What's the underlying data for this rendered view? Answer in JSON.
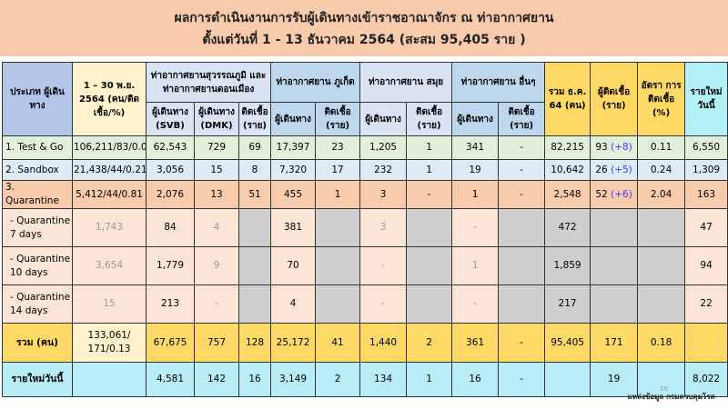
{
  "title": {
    "line1": "ผลการดำเนินงานการรับผู้เดินทางเข้าราชอาณาจักร ณ ท่าอากาศยาน",
    "line2": "ตั้งแต่วันที่  1 - 13  ธันวาคม 2564  (สะสม 95,405 ราย )"
  },
  "header": {
    "type": "ประเภท ผู้เดินทาง",
    "nov": "1 – 30 พ.ย. 2564 (คน/ติดเชื้อ/%)",
    "bkk": "ท่าอากาศยานสุวรรณภูมิ และท่าอากาศยานดอนเมือง",
    "phuket": "ท่าอากาศยาน ภูเก็ต",
    "samui": "ท่าอากาศยาน สมุย",
    "other": "ท่าอากาศยาน อื่นๆ",
    "total_dec": "รวม ธ.ค. 64 (คน)",
    "infected": "ผู้ติดเชื้อ (ราย)",
    "rate": "อัตรา การติดเชื้อ (%)",
    "new_today": "รายใหม่ วันนี้",
    "svb": "ผู้เดินทาง (SVB)",
    "dmk": "ผู้เดินทาง (DMK)",
    "inf": "ติดเชื้อ (ราย)",
    "trav": "ผู้เดินทาง"
  },
  "rows": [
    {
      "label": "1. Test & Go",
      "nov": "106,211/83/0.08",
      "svb": "62,543",
      "dmk": "729",
      "bkk_inf": "69",
      "hkt": "17,397",
      "hkt_inf": "23",
      "usm": "1,205",
      "usm_inf": "1",
      "oth": "341",
      "oth_inf": "-",
      "total": "82,215",
      "infected": "93",
      "infected_delta": "(+8)",
      "rate": "0.11",
      "new": "6,550"
    },
    {
      "label": "2. Sandbox",
      "nov": "21,438/44/0.21",
      "svb": "3,056",
      "dmk": "15",
      "bkk_inf": "8",
      "hkt": "7,320",
      "hkt_inf": "17",
      "usm": "232",
      "usm_inf": "1",
      "oth": "19",
      "oth_inf": "-",
      "total": "10,642",
      "infected": "26",
      "infected_delta": "(+5)",
      "rate": "0.24",
      "new": "1,309"
    },
    {
      "label": "3. Quarantine",
      "nov": "5,412/44/0.81",
      "svb": "2,076",
      "dmk": "13",
      "bkk_inf": "51",
      "hkt": "455",
      "hkt_inf": "1",
      "usm": "3",
      "usm_inf": "-",
      "oth": "1",
      "oth_inf": "-",
      "total": "2,548",
      "infected": "52",
      "infected_delta": "(+6)",
      "rate": "2.04",
      "new": "163"
    },
    {
      "label": "- Quarantine 7 days",
      "nov": "1,743",
      "svb": "84",
      "dmk": "4",
      "hkt": "381",
      "usm": "3",
      "oth": "-",
      "total": "472",
      "new": "47"
    },
    {
      "label": "- Quarantine 10 days",
      "nov": "3,654",
      "svb": "1,779",
      "dmk": "9",
      "hkt": "70",
      "usm": "-",
      "oth": "1",
      "total": "1,859",
      "new": "94"
    },
    {
      "label": "- Quarantine 14 days",
      "nov": "15",
      "svb": "213",
      "dmk": "-",
      "hkt": "4",
      "usm": "-",
      "oth": "-",
      "total": "217",
      "new": "22"
    }
  ],
  "total": {
    "label": "รวม (คน)",
    "nov": "133,061/ 171/0.13",
    "svb": "67,675",
    "dmk": "757",
    "bkk_inf": "128",
    "hkt": "25,172",
    "hkt_inf": "41",
    "usm": "1,440",
    "usm_inf": "2",
    "oth": "361",
    "oth_inf": "-",
    "total": "95,405",
    "infected": "171",
    "rate": "0.18"
  },
  "today": {
    "label": "รายใหม่วันนี้",
    "svb": "4,581",
    "dmk": "142",
    "bkk_inf": "16",
    "hkt": "3,149",
    "hkt_inf": "2",
    "usm": "134",
    "usm_inf": "1",
    "oth": "16",
    "oth_inf": "-",
    "infected": "19",
    "new": "8,022"
  },
  "page_number": "16",
  "source": "แหล่งข้อมูล กรมควบคุมโรค"
}
